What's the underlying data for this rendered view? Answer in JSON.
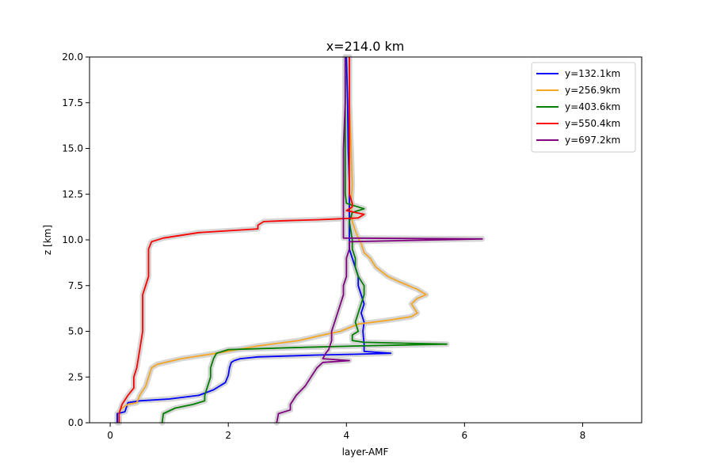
{
  "chart_data": {
    "type": "line",
    "title": "x=214.0 km",
    "xlabel": "layer-AMF",
    "ylabel": "z [km]",
    "xlim": [
      -0.35,
      9.0
    ],
    "ylim": [
      0.0,
      20.0
    ],
    "xticks": [
      0,
      2,
      4,
      6,
      8
    ],
    "xtick_labels": [
      "0",
      "2",
      "4",
      "6",
      "8"
    ],
    "yticks": [
      0.0,
      2.5,
      5.0,
      7.5,
      10.0,
      12.5,
      15.0,
      17.5,
      20.0
    ],
    "ytick_labels": [
      "0.0",
      "2.5",
      "5.0",
      "7.5",
      "10.0",
      "12.5",
      "15.0",
      "17.5",
      "20.0"
    ],
    "grid": false,
    "legend_position": "top-right",
    "band_color": "#cfcfcf",
    "series": [
      {
        "name": "y=132.1km",
        "color": "#0000ff",
        "points": [
          [
            0.12,
            0.0
          ],
          [
            0.12,
            0.5
          ],
          [
            0.25,
            0.6
          ],
          [
            0.3,
            1.1
          ],
          [
            0.5,
            1.2
          ],
          [
            1.0,
            1.3
          ],
          [
            1.5,
            1.5
          ],
          [
            1.75,
            1.8
          ],
          [
            1.95,
            2.2
          ],
          [
            2.0,
            2.6
          ],
          [
            2.02,
            3.0
          ],
          [
            2.05,
            3.3
          ],
          [
            2.1,
            3.4
          ],
          [
            2.2,
            3.5
          ],
          [
            2.5,
            3.6
          ],
          [
            3.5,
            3.7
          ],
          [
            4.2,
            3.75
          ],
          [
            4.75,
            3.8
          ],
          [
            4.3,
            3.9
          ],
          [
            4.3,
            4.3
          ],
          [
            4.28,
            5.0
          ],
          [
            4.3,
            5.5
          ],
          [
            4.25,
            6.0
          ],
          [
            4.3,
            6.5
          ],
          [
            4.25,
            7.0
          ],
          [
            4.2,
            7.5
          ],
          [
            4.2,
            8.0
          ],
          [
            4.15,
            8.5
          ],
          [
            4.1,
            9.0
          ],
          [
            4.05,
            9.5
          ],
          [
            4.05,
            10.0
          ],
          [
            4.05,
            11.0
          ],
          [
            4.05,
            12.0
          ],
          [
            4.05,
            13.0
          ],
          [
            4.03,
            15.0
          ],
          [
            4.02,
            17.5
          ],
          [
            4.0,
            20.0
          ]
        ]
      },
      {
        "name": "y=256.9km",
        "color": "#f5a623",
        "points": [
          [
            0.15,
            0.0
          ],
          [
            0.15,
            0.6
          ],
          [
            0.2,
            0.8
          ],
          [
            0.3,
            1.0
          ],
          [
            0.45,
            1.1
          ],
          [
            0.5,
            1.5
          ],
          [
            0.6,
            2.0
          ],
          [
            0.65,
            2.5
          ],
          [
            0.7,
            3.0
          ],
          [
            0.8,
            3.2
          ],
          [
            1.2,
            3.5
          ],
          [
            1.8,
            3.8
          ],
          [
            2.5,
            4.2
          ],
          [
            3.2,
            4.5
          ],
          [
            3.6,
            4.8
          ],
          [
            3.9,
            5.0
          ],
          [
            4.2,
            5.4
          ],
          [
            4.7,
            5.6
          ],
          [
            5.1,
            5.8
          ],
          [
            5.2,
            6.0
          ],
          [
            5.1,
            6.5
          ],
          [
            5.2,
            6.8
          ],
          [
            5.35,
            7.0
          ],
          [
            5.2,
            7.3
          ],
          [
            4.9,
            7.7
          ],
          [
            4.7,
            8.0
          ],
          [
            4.5,
            8.5
          ],
          [
            4.4,
            9.0
          ],
          [
            4.3,
            9.3
          ],
          [
            4.25,
            9.8
          ],
          [
            4.2,
            10.1
          ],
          [
            4.15,
            10.5
          ],
          [
            4.1,
            11.0
          ],
          [
            4.08,
            12.0
          ],
          [
            4.1,
            13.0
          ],
          [
            4.08,
            15.0
          ],
          [
            4.05,
            17.5
          ],
          [
            4.05,
            20.0
          ]
        ]
      },
      {
        "name": "y=403.6km",
        "color": "#008000",
        "points": [
          [
            0.88,
            0.0
          ],
          [
            0.9,
            0.5
          ],
          [
            1.1,
            0.8
          ],
          [
            1.4,
            1.0
          ],
          [
            1.6,
            1.2
          ],
          [
            1.6,
            1.5
          ],
          [
            1.65,
            2.0
          ],
          [
            1.7,
            2.5
          ],
          [
            1.7,
            3.0
          ],
          [
            1.75,
            3.5
          ],
          [
            1.8,
            3.8
          ],
          [
            2.0,
            4.0
          ],
          [
            3.0,
            4.1
          ],
          [
            4.2,
            4.2
          ],
          [
            5.7,
            4.3
          ],
          [
            4.3,
            4.4
          ],
          [
            4.1,
            4.5
          ],
          [
            4.1,
            4.8
          ],
          [
            4.2,
            5.0
          ],
          [
            4.15,
            5.5
          ],
          [
            4.2,
            6.0
          ],
          [
            4.25,
            6.5
          ],
          [
            4.3,
            7.0
          ],
          [
            4.3,
            7.5
          ],
          [
            4.2,
            8.0
          ],
          [
            4.15,
            8.5
          ],
          [
            4.15,
            9.0
          ],
          [
            4.1,
            9.5
          ],
          [
            4.1,
            10.0
          ],
          [
            4.05,
            11.0
          ],
          [
            4.1,
            11.5
          ],
          [
            4.3,
            11.7
          ],
          [
            4.0,
            12.0
          ],
          [
            3.98,
            12.5
          ],
          [
            3.98,
            15.0
          ],
          [
            3.98,
            17.5
          ],
          [
            3.98,
            20.0
          ]
        ]
      },
      {
        "name": "y=550.4km",
        "color": "#ff0000",
        "points": [
          [
            0.15,
            0.0
          ],
          [
            0.15,
            0.5
          ],
          [
            0.2,
            1.0
          ],
          [
            0.3,
            1.5
          ],
          [
            0.4,
            1.9
          ],
          [
            0.4,
            2.5
          ],
          [
            0.45,
            3.0
          ],
          [
            0.5,
            4.0
          ],
          [
            0.55,
            5.0
          ],
          [
            0.55,
            6.0
          ],
          [
            0.55,
            7.0
          ],
          [
            0.6,
            7.5
          ],
          [
            0.65,
            8.0
          ],
          [
            0.65,
            9.0
          ],
          [
            0.65,
            9.5
          ],
          [
            0.7,
            9.9
          ],
          [
            0.9,
            10.1
          ],
          [
            1.5,
            10.4
          ],
          [
            2.5,
            10.6
          ],
          [
            2.5,
            10.7
          ],
          [
            2.5,
            10.8
          ],
          [
            2.6,
            11.0
          ],
          [
            3.0,
            11.05
          ],
          [
            3.5,
            11.1
          ],
          [
            4.2,
            11.2
          ],
          [
            4.3,
            11.4
          ],
          [
            4.0,
            11.6
          ],
          [
            4.1,
            11.8
          ],
          [
            4.1,
            12.0
          ],
          [
            4.05,
            12.5
          ],
          [
            4.05,
            13.0
          ],
          [
            4.05,
            15.0
          ],
          [
            4.05,
            17.5
          ],
          [
            4.05,
            20.0
          ]
        ]
      },
      {
        "name": "y=697.2km",
        "color": "#800080",
        "points": [
          [
            2.82,
            0.0
          ],
          [
            2.85,
            0.5
          ],
          [
            3.05,
            0.7
          ],
          [
            3.05,
            1.0
          ],
          [
            3.15,
            1.5
          ],
          [
            3.3,
            2.0
          ],
          [
            3.4,
            2.5
          ],
          [
            3.5,
            3.0
          ],
          [
            3.6,
            3.3
          ],
          [
            4.05,
            3.4
          ],
          [
            3.6,
            3.5
          ],
          [
            3.65,
            3.8
          ],
          [
            3.7,
            4.0
          ],
          [
            3.75,
            4.5
          ],
          [
            3.75,
            5.0
          ],
          [
            3.8,
            5.5
          ],
          [
            3.85,
            6.0
          ],
          [
            3.9,
            6.5
          ],
          [
            3.95,
            7.0
          ],
          [
            3.95,
            7.5
          ],
          [
            4.0,
            8.0
          ],
          [
            4.0,
            8.5
          ],
          [
            4.0,
            9.0
          ],
          [
            4.05,
            9.5
          ],
          [
            4.05,
            9.9
          ],
          [
            6.3,
            10.05
          ],
          [
            3.95,
            10.1
          ],
          [
            3.95,
            10.5
          ],
          [
            3.95,
            11.0
          ],
          [
            3.95,
            11.5
          ],
          [
            3.95,
            11.8
          ],
          [
            3.95,
            12.0
          ],
          [
            3.95,
            13.0
          ],
          [
            3.95,
            15.0
          ],
          [
            3.98,
            17.5
          ],
          [
            3.98,
            20.0
          ]
        ]
      }
    ]
  }
}
